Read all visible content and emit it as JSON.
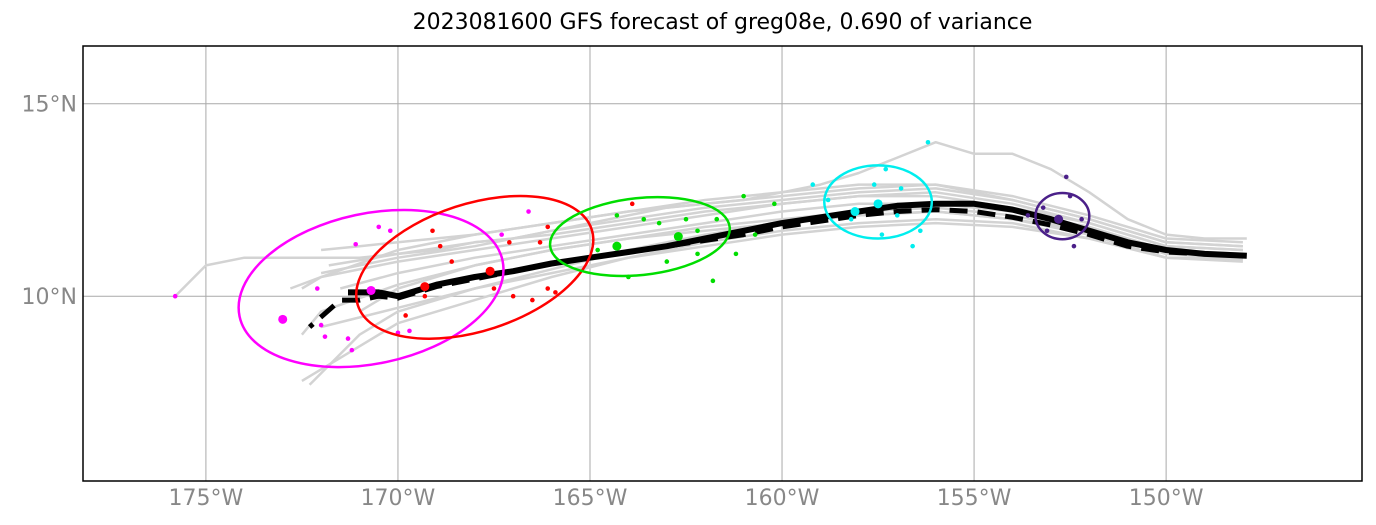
{
  "chart_data": {
    "type": "line",
    "title": "2023081600 GFS forecast of greg08e, 0.690 of variance",
    "xlim": [
      -178.2,
      -144.9
    ],
    "ylim": [
      5.2,
      16.5
    ],
    "x_ticks": [
      {
        "value": -175,
        "label": "175°W"
      },
      {
        "value": -170,
        "label": "170°W"
      },
      {
        "value": -165,
        "label": "165°W"
      },
      {
        "value": -160,
        "label": "160°W"
      },
      {
        "value": -155,
        "label": "155°W"
      },
      {
        "value": -150,
        "label": "150°W"
      }
    ],
    "y_ticks": [
      {
        "value": 10,
        "label": "10°N"
      },
      {
        "value": 15,
        "label": "15°N"
      }
    ],
    "grid": true,
    "colors": {
      "ensemble": "#d3d3d3",
      "mean": "#000000",
      "times": [
        "#ff00ff",
        "#ff0000",
        "#00dd00",
        "#00eeee",
        "#4b2089"
      ]
    },
    "mean_track": {
      "lon": [
        -147.9,
        -149,
        -150,
        -151,
        -152,
        -153,
        -154,
        -155,
        -156,
        -157,
        -158,
        -159,
        -160,
        -161,
        -162,
        -163,
        -164,
        -165,
        -166,
        -167,
        -168,
        -169,
        -170,
        -170.5,
        -171,
        -171.3
      ],
      "lat": [
        11.05,
        11.1,
        11.2,
        11.4,
        11.7,
        12.0,
        12.25,
        12.4,
        12.4,
        12.35,
        12.2,
        12.05,
        11.9,
        11.7,
        11.5,
        11.3,
        11.15,
        11.0,
        10.85,
        10.65,
        10.5,
        10.3,
        10.0,
        10.1,
        10.1,
        10.1
      ]
    },
    "control_track": {
      "lon": [
        -148,
        -149,
        -150,
        -151,
        -152,
        -153,
        -154,
        -155,
        -156,
        -157,
        -158,
        -159,
        -160,
        -161,
        -162,
        -163,
        -164,
        -165,
        -166,
        -167,
        -168,
        -169,
        -170,
        -170.5,
        -171,
        -171.5,
        -172.3
      ],
      "lat": [
        11.05,
        11.1,
        11.15,
        11.3,
        11.6,
        11.85,
        12.05,
        12.2,
        12.25,
        12.2,
        12.1,
        11.95,
        11.8,
        11.6,
        11.45,
        11.3,
        11.15,
        11.0,
        10.85,
        10.65,
        10.45,
        10.25,
        9.95,
        10.0,
        9.9,
        9.9,
        9.2
      ]
    },
    "ensemble_tracks": [
      {
        "lon": [
          -147.9,
          -149,
          -150,
          -151,
          -152,
          -153,
          -154,
          -155,
          -156,
          -157,
          -158,
          -159,
          -160,
          -161,
          -162,
          -163,
          -164,
          -165,
          -166,
          -167,
          -168,
          -169,
          -170,
          -171,
          -172,
          -173,
          -174,
          -175,
          -175.8
        ],
        "lat": [
          11.5,
          11.5,
          11.6,
          12.0,
          12.7,
          13.3,
          13.7,
          13.7,
          14.0,
          13.6,
          13.2,
          12.9,
          12.7,
          12.5,
          12.4,
          12.3,
          12.1,
          11.9,
          11.7,
          11.5,
          11.4,
          11.2,
          11.1,
          11.0,
          11.0,
          11.0,
          11.0,
          10.8,
          10.0
        ]
      },
      {
        "lon": [
          -148,
          -150,
          -152,
          -154,
          -156,
          -158,
          -160,
          -162,
          -164,
          -166,
          -168,
          -170,
          -171,
          -172
        ],
        "lat": [
          11.4,
          11.5,
          12.1,
          12.6,
          12.9,
          12.8,
          12.6,
          12.4,
          12.2,
          11.9,
          11.6,
          11.4,
          11.3,
          11.2
        ]
      },
      {
        "lon": [
          -148,
          -150,
          -152,
          -154,
          -156,
          -158,
          -160,
          -162,
          -164,
          -166,
          -168,
          -170,
          -172,
          -172.5
        ],
        "lat": [
          11.2,
          11.3,
          11.9,
          12.3,
          12.6,
          12.6,
          12.4,
          12.1,
          11.8,
          11.5,
          11.2,
          10.9,
          10.5,
          10.2
        ]
      },
      {
        "lon": [
          -148,
          -150,
          -152,
          -154,
          -156,
          -158,
          -160,
          -162,
          -164,
          -166,
          -168,
          -170,
          -172,
          -172.5
        ],
        "lat": [
          11.0,
          11.1,
          11.7,
          12.1,
          12.3,
          12.2,
          12.0,
          11.8,
          11.5,
          11.2,
          10.8,
          10.3,
          9.6,
          9.0
        ]
      },
      {
        "lon": [
          -148,
          -150,
          -152,
          -154,
          -156,
          -158,
          -160,
          -162,
          -164,
          -166,
          -168,
          -170,
          -171,
          -172.5
        ],
        "lat": [
          10.9,
          11.0,
          11.5,
          11.9,
          12.0,
          11.9,
          11.7,
          11.4,
          11.0,
          10.5,
          9.9,
          9.3,
          8.7,
          7.8
        ]
      },
      {
        "lon": [
          -148,
          -150,
          -152,
          -154,
          -156,
          -158,
          -160,
          -162,
          -164,
          -166,
          -168,
          -170,
          -171,
          -172.3
        ],
        "lat": [
          11.0,
          11.0,
          11.6,
          12.0,
          12.2,
          12.1,
          11.9,
          11.6,
          11.2,
          10.7,
          10.2,
          9.6,
          9.0,
          7.7
        ]
      },
      {
        "lon": [
          -148,
          -150,
          -152,
          -154,
          -156,
          -158,
          -160,
          -162,
          -164,
          -166,
          -168,
          -170,
          -172
        ],
        "lat": [
          11.3,
          11.4,
          12.0,
          12.5,
          12.8,
          12.7,
          12.5,
          12.3,
          12.0,
          11.7,
          11.3,
          11.0,
          10.6
        ]
      },
      {
        "lon": [
          -148,
          -150,
          -152,
          -154,
          -156,
          -158,
          -160,
          -162,
          -164,
          -166,
          -168,
          -170,
          -171.5
        ],
        "lat": [
          11.1,
          11.2,
          11.8,
          12.2,
          12.4,
          12.4,
          12.2,
          11.9,
          11.6,
          11.3,
          11.0,
          10.6,
          10.2
        ]
      },
      {
        "lon": [
          -148,
          -150,
          -152,
          -154,
          -156,
          -158,
          -160,
          -162,
          -164,
          -166,
          -168,
          -170,
          -171.8
        ],
        "lat": [
          11.2,
          11.3,
          11.9,
          12.4,
          12.7,
          12.6,
          12.4,
          12.2,
          11.9,
          11.6,
          11.4,
          11.1,
          10.8
        ]
      },
      {
        "lon": [
          -148,
          -150,
          -152,
          -154,
          -156,
          -158,
          -160,
          -162,
          -164,
          -166,
          -168,
          -170,
          -172
        ],
        "lat": [
          10.95,
          11.0,
          11.5,
          11.8,
          11.9,
          11.8,
          11.6,
          11.3,
          11.0,
          10.6,
          10.2,
          9.7,
          9.2
        ]
      },
      {
        "lon": [
          -148,
          -150,
          -152,
          -154,
          -156,
          -158,
          -160,
          -162,
          -164,
          -166,
          -168,
          -170,
          -172,
          -172.8
        ],
        "lat": [
          11.3,
          11.4,
          12.0,
          12.5,
          12.9,
          12.9,
          12.7,
          12.5,
          12.2,
          11.9,
          11.6,
          11.2,
          10.5,
          10.2
        ]
      },
      {
        "lon": [
          -148,
          -150,
          -152,
          -154,
          -156,
          -158,
          -160,
          -162,
          -164,
          -166,
          -168,
          -170,
          -171
        ],
        "lat": [
          11.1,
          11.1,
          11.7,
          12.0,
          12.2,
          12.1,
          11.9,
          11.7,
          11.5,
          11.2,
          10.8,
          10.2,
          9.6
        ]
      }
    ],
    "uncertainty_ellipses": [
      {
        "lon": -170.7,
        "lat": 10.2,
        "rx_deg": 3.5,
        "ry_deg": 1.95,
        "tilt_deg": 12,
        "color": "#ff00ff"
      },
      {
        "lon": -168.0,
        "lat": 10.75,
        "rx_deg": 3.2,
        "ry_deg": 1.65,
        "tilt_deg": 18,
        "color": "#ff0000"
      },
      {
        "lon": -163.7,
        "lat": 11.55,
        "rx_deg": 2.35,
        "ry_deg": 1.0,
        "tilt_deg": 6,
        "color": "#00dd00"
      },
      {
        "lon": -157.5,
        "lat": 12.45,
        "rx_deg": 1.4,
        "ry_deg": 0.95,
        "tilt_deg": 0,
        "color": "#00eeee"
      },
      {
        "lon": -152.7,
        "lat": 12.08,
        "rx_deg": 0.7,
        "ry_deg": 0.6,
        "tilt_deg": 0,
        "color": "#4b2089"
      }
    ],
    "center_points": [
      {
        "lon": -173.0,
        "lat": 9.4,
        "color": "#ff00ff",
        "big": true
      },
      {
        "lon": -170.7,
        "lat": 10.15,
        "color": "#ff00ff",
        "big": true
      },
      {
        "lon": -169.3,
        "lat": 10.25,
        "color": "#ff0000",
        "big": true
      },
      {
        "lon": -167.6,
        "lat": 10.65,
        "color": "#ff0000",
        "big": true
      },
      {
        "lon": -164.3,
        "lat": 11.3,
        "color": "#00dd00",
        "big": true
      },
      {
        "lon": -162.7,
        "lat": 11.55,
        "color": "#00dd00",
        "big": true
      },
      {
        "lon": -158.1,
        "lat": 12.2,
        "color": "#00eeee",
        "big": true
      },
      {
        "lon": -157.5,
        "lat": 12.4,
        "color": "#00eeee",
        "big": true
      },
      {
        "lon": -152.8,
        "lat": 12.0,
        "color": "#4b2089",
        "big": true
      }
    ],
    "member_points": [
      {
        "lon": -175.8,
        "lat": 10.0,
        "color": "#ff00ff"
      },
      {
        "lon": -172.1,
        "lat": 10.2,
        "color": "#ff00ff"
      },
      {
        "lon": -171.1,
        "lat": 11.35,
        "color": "#ff00ff"
      },
      {
        "lon": -170.5,
        "lat": 11.8,
        "color": "#ff00ff"
      },
      {
        "lon": -170.2,
        "lat": 11.7,
        "color": "#ff00ff"
      },
      {
        "lon": -171.9,
        "lat": 8.95,
        "color": "#ff00ff"
      },
      {
        "lon": -171.2,
        "lat": 8.6,
        "color": "#ff00ff"
      },
      {
        "lon": -171.3,
        "lat": 8.9,
        "color": "#ff00ff"
      },
      {
        "lon": -170.0,
        "lat": 9.05,
        "color": "#ff00ff"
      },
      {
        "lon": -169.7,
        "lat": 9.1,
        "color": "#ff00ff"
      },
      {
        "lon": -167.3,
        "lat": 11.6,
        "color": "#ff00ff"
      },
      {
        "lon": -166.6,
        "lat": 12.2,
        "color": "#ff00ff"
      },
      {
        "lon": -172.0,
        "lat": 9.25,
        "color": "#ff00ff"
      },
      {
        "lon": -169.8,
        "lat": 9.5,
        "color": "#ff0000"
      },
      {
        "lon": -169.3,
        "lat": 10.0,
        "color": "#ff0000"
      },
      {
        "lon": -168.9,
        "lat": 11.3,
        "color": "#ff0000"
      },
      {
        "lon": -169.1,
        "lat": 11.7,
        "color": "#ff0000"
      },
      {
        "lon": -168.6,
        "lat": 10.9,
        "color": "#ff0000"
      },
      {
        "lon": -167.5,
        "lat": 10.2,
        "color": "#ff0000"
      },
      {
        "lon": -167.0,
        "lat": 10.0,
        "color": "#ff0000"
      },
      {
        "lon": -166.5,
        "lat": 9.9,
        "color": "#ff0000"
      },
      {
        "lon": -166.1,
        "lat": 10.2,
        "color": "#ff0000"
      },
      {
        "lon": -165.9,
        "lat": 10.1,
        "color": "#ff0000"
      },
      {
        "lon": -167.1,
        "lat": 11.4,
        "color": "#ff0000"
      },
      {
        "lon": -166.3,
        "lat": 11.4,
        "color": "#ff0000"
      },
      {
        "lon": -166.1,
        "lat": 11.8,
        "color": "#ff0000"
      },
      {
        "lon": -163.9,
        "lat": 12.4,
        "color": "#ff0000"
      },
      {
        "lon": -164.8,
        "lat": 11.2,
        "color": "#00dd00"
      },
      {
        "lon": -164.3,
        "lat": 12.1,
        "color": "#00dd00"
      },
      {
        "lon": -163.6,
        "lat": 12.0,
        "color": "#00dd00"
      },
      {
        "lon": -163.2,
        "lat": 11.9,
        "color": "#00dd00"
      },
      {
        "lon": -162.5,
        "lat": 12.0,
        "color": "#00dd00"
      },
      {
        "lon": -162.2,
        "lat": 11.7,
        "color": "#00dd00"
      },
      {
        "lon": -161.7,
        "lat": 12.0,
        "color": "#00dd00"
      },
      {
        "lon": -161.0,
        "lat": 12.6,
        "color": "#00dd00"
      },
      {
        "lon": -160.2,
        "lat": 12.4,
        "color": "#00dd00"
      },
      {
        "lon": -163.0,
        "lat": 10.9,
        "color": "#00dd00"
      },
      {
        "lon": -162.2,
        "lat": 11.1,
        "color": "#00dd00"
      },
      {
        "lon": -161.2,
        "lat": 11.1,
        "color": "#00dd00"
      },
      {
        "lon": -160.7,
        "lat": 11.6,
        "color": "#00dd00"
      },
      {
        "lon": -161.8,
        "lat": 10.4,
        "color": "#00dd00"
      },
      {
        "lon": -164.0,
        "lat": 10.5,
        "color": "#00dd00"
      },
      {
        "lon": -159.2,
        "lat": 12.9,
        "color": "#00eeee"
      },
      {
        "lon": -158.8,
        "lat": 12.5,
        "color": "#00eeee"
      },
      {
        "lon": -157.6,
        "lat": 12.9,
        "color": "#00eeee"
      },
      {
        "lon": -157.3,
        "lat": 13.3,
        "color": "#00eeee"
      },
      {
        "lon": -156.9,
        "lat": 12.8,
        "color": "#00eeee"
      },
      {
        "lon": -156.2,
        "lat": 14.0,
        "color": "#00eeee"
      },
      {
        "lon": -157.0,
        "lat": 12.1,
        "color": "#00eeee"
      },
      {
        "lon": -156.4,
        "lat": 11.7,
        "color": "#00eeee"
      },
      {
        "lon": -156.6,
        "lat": 11.3,
        "color": "#00eeee"
      },
      {
        "lon": -157.4,
        "lat": 11.6,
        "color": "#00eeee"
      },
      {
        "lon": -158.2,
        "lat": 12.0,
        "color": "#00eeee"
      },
      {
        "lon": -153.2,
        "lat": 12.3,
        "color": "#4b2089"
      },
      {
        "lon": -152.6,
        "lat": 13.1,
        "color": "#4b2089"
      },
      {
        "lon": -152.4,
        "lat": 11.3,
        "color": "#4b2089"
      },
      {
        "lon": -153.1,
        "lat": 11.7,
        "color": "#4b2089"
      },
      {
        "lon": -152.2,
        "lat": 12.0,
        "color": "#4b2089"
      },
      {
        "lon": -153.6,
        "lat": 12.1,
        "color": "#4b2089"
      },
      {
        "lon": -152.5,
        "lat": 12.6,
        "color": "#4b2089"
      }
    ]
  }
}
